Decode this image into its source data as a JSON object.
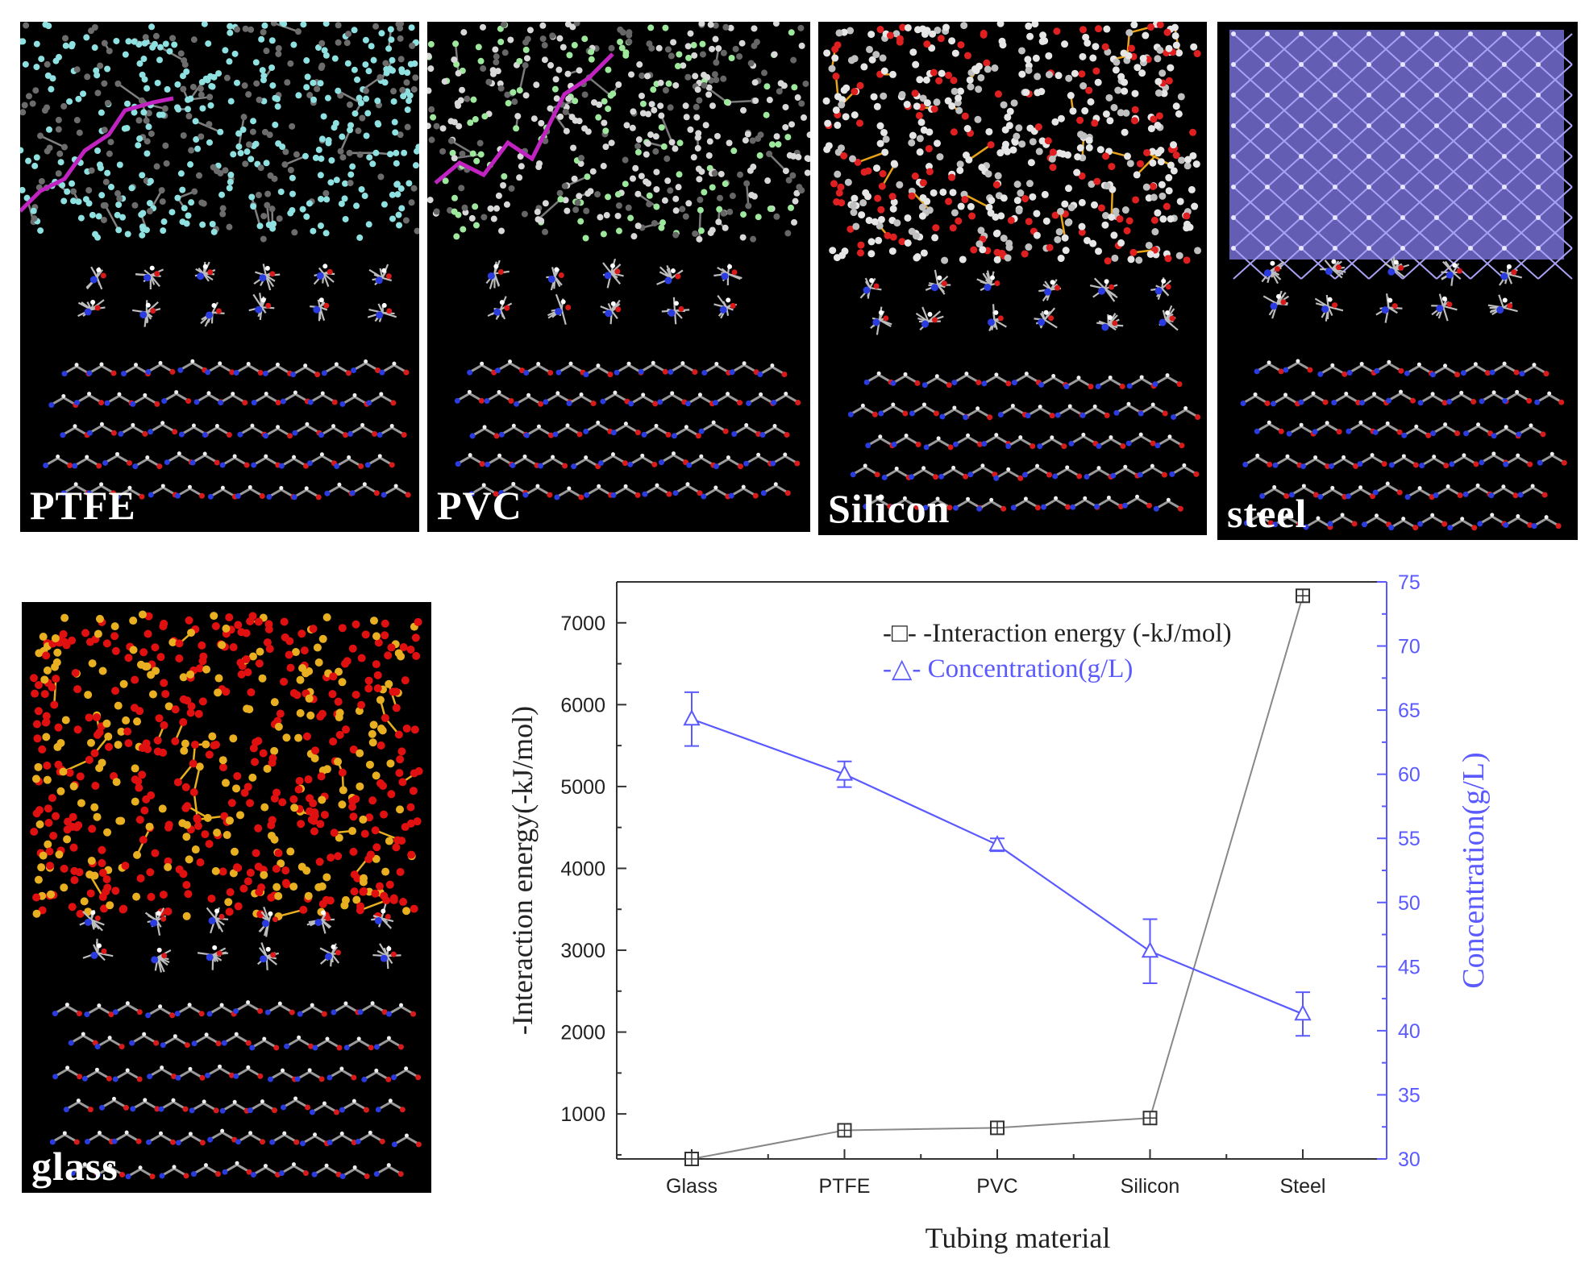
{
  "panels": {
    "ptfe": {
      "label": "PTFE",
      "polymer_color": "#8fe0e0",
      "chain_color": "#c023c0"
    },
    "pvc": {
      "label": "PVC",
      "polymer_color": "#d8d8d8",
      "accent_color": "#9ee89e",
      "chain_color": "#c023c0"
    },
    "silicon": {
      "label": "Silicon",
      "polymer_color": "#e6e6e6",
      "accent_color": "#e8a317",
      "oxygen_color": "#e02020"
    },
    "steel": {
      "label": "steel",
      "polymer_color": "#8a84e6"
    },
    "glass": {
      "label": "glass",
      "polymer_color": "#e8b020",
      "oxygen_color": "#e01010"
    }
  },
  "chart_data": {
    "type": "line",
    "xlabel": "Tubing material",
    "ylabel": "-Interaction energy(-kJ/mol)",
    "ylabel_right": "Concentration(g/L)",
    "categories": [
      "Glass",
      "PTFE",
      "PVC",
      "Silicon",
      "Steel"
    ],
    "ylim": [
      450,
      7500
    ],
    "ylim_right": [
      30,
      75
    ],
    "yticks": [
      1000,
      2000,
      3000,
      4000,
      5000,
      6000,
      7000
    ],
    "yticks_right": [
      30,
      35,
      40,
      45,
      50,
      55,
      60,
      65,
      70,
      75
    ],
    "series": [
      {
        "name": "Interaction energy (-kJ/mol)",
        "legend_label": "-□- -Interaction energy (-kJ/mol)",
        "axis": "left",
        "marker": "square",
        "color": "#555555",
        "values": [
          450,
          800,
          830,
          950,
          7330
        ]
      },
      {
        "name": "Concentration(g/L)",
        "legend_label": "-△- Concentration(g/L)",
        "axis": "right",
        "marker": "triangle",
        "color": "#5a5aff",
        "values": [
          64.3,
          60.0,
          54.5,
          46.2,
          41.3
        ],
        "errors": [
          2.1,
          1.0,
          0.5,
          2.5,
          1.7
        ]
      }
    ]
  }
}
